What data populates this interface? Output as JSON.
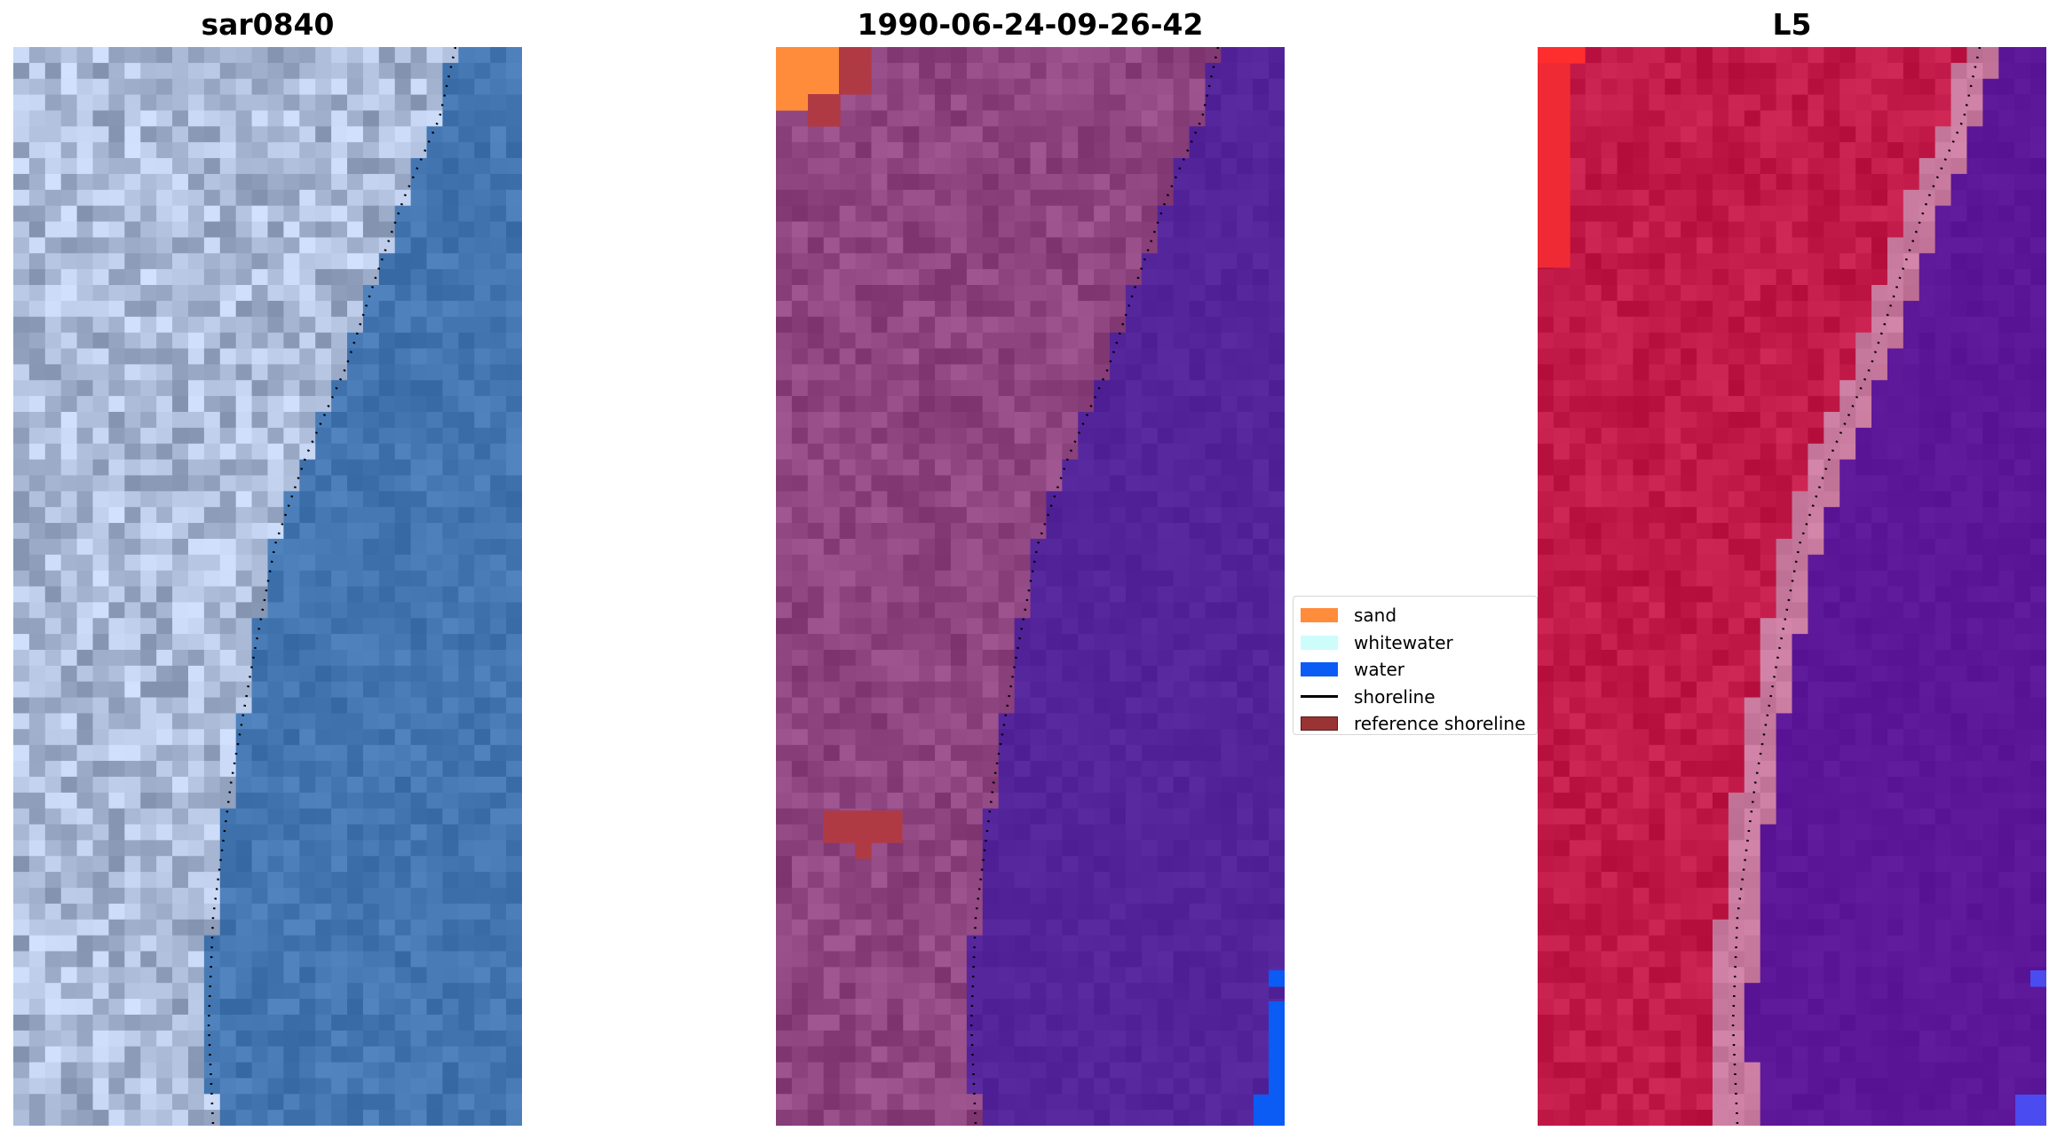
{
  "panels": [
    {
      "title": "sar0840",
      "kind": "rgb"
    },
    {
      "title": "1990-06-24-09-26-42",
      "kind": "classified"
    },
    {
      "title": "L5",
      "kind": "index"
    }
  ],
  "legend": {
    "items": [
      {
        "label": "sand",
        "type": "patch",
        "color": "#fe8c3a",
        "border": "#fe8c3a"
      },
      {
        "label": "whitewater",
        "type": "patch",
        "color": "#cdfdfb",
        "border": "#cdfdfb"
      },
      {
        "label": "water",
        "type": "patch",
        "color": "#0a5cf5",
        "border": "#0a5cf5"
      },
      {
        "label": "shoreline",
        "type": "line",
        "color": "#000000"
      },
      {
        "label": "reference shoreline",
        "type": "patch",
        "color": "#993334",
        "border": "#5a1a1b"
      }
    ]
  },
  "colors": {
    "rgb_land": "#a9b9d6",
    "rgb_water": "#4477b2",
    "class_land": "#8e4580",
    "class_water": "#54259a",
    "index_land": "#c21a48",
    "index_water": "#5c1698",
    "index_band": "#c77a9d",
    "sand": "#fe8c3a",
    "water": "#0a5cf5",
    "reference_shoreline": "#b03a44"
  }
}
